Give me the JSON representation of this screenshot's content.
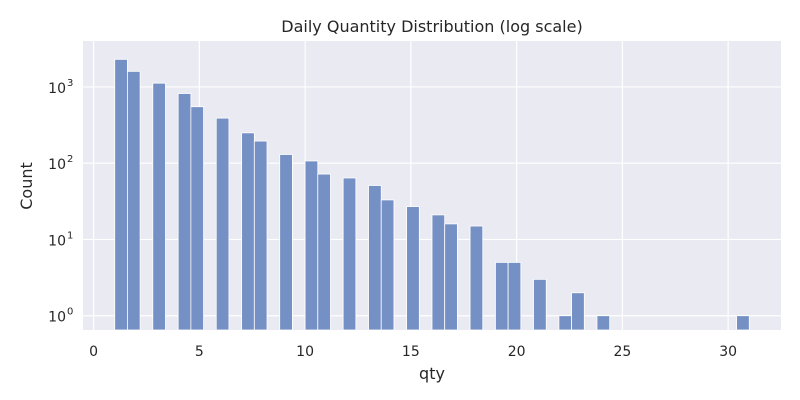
{
  "chart_data": {
    "type": "bar",
    "title": "Daily Quantity Distribution (log scale)",
    "xlabel": "qty",
    "ylabel": "Count",
    "yscale": "log",
    "xlim": [
      -0.5,
      32.5
    ],
    "ylim": [
      0.65,
      4000
    ],
    "grid": true,
    "legend": "none",
    "bar_width": 0.6,
    "colors": {
      "bar": "#7590c4",
      "background": "#eaeaf2",
      "grid": "#ffffff"
    },
    "x_ticks": [
      0,
      5,
      10,
      15,
      20,
      25,
      30
    ],
    "y_ticks": [
      {
        "value": 1,
        "label": "10",
        "exp": "0"
      },
      {
        "value": 10,
        "label": "10",
        "exp": "1"
      },
      {
        "value": 100,
        "label": "10",
        "exp": "2"
      },
      {
        "value": 1000,
        "label": "10",
        "exp": "3"
      }
    ],
    "bins": [
      {
        "x": 1.3,
        "count": 2300
      },
      {
        "x": 1.9,
        "count": 1600
      },
      {
        "x": 3.1,
        "count": 1120
      },
      {
        "x": 4.3,
        "count": 820
      },
      {
        "x": 4.9,
        "count": 550
      },
      {
        "x": 6.1,
        "count": 390
      },
      {
        "x": 7.3,
        "count": 250
      },
      {
        "x": 7.9,
        "count": 195
      },
      {
        "x": 9.1,
        "count": 130
      },
      {
        "x": 10.3,
        "count": 107
      },
      {
        "x": 10.9,
        "count": 72
      },
      {
        "x": 12.1,
        "count": 64
      },
      {
        "x": 13.3,
        "count": 51
      },
      {
        "x": 13.9,
        "count": 33
      },
      {
        "x": 15.1,
        "count": 27
      },
      {
        "x": 16.3,
        "count": 21
      },
      {
        "x": 16.9,
        "count": 16
      },
      {
        "x": 18.1,
        "count": 15
      },
      {
        "x": 19.3,
        "count": 5
      },
      {
        "x": 19.9,
        "count": 5
      },
      {
        "x": 21.1,
        "count": 3
      },
      {
        "x": 22.3,
        "count": 1
      },
      {
        "x": 22.9,
        "count": 2
      },
      {
        "x": 24.1,
        "count": 1
      },
      {
        "x": 30.7,
        "count": 1
      }
    ]
  }
}
